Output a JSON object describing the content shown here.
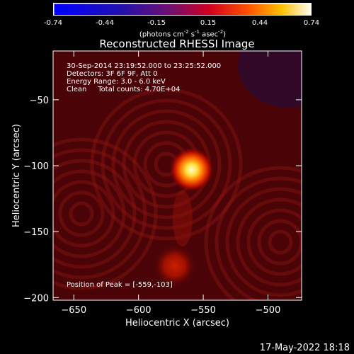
{
  "colorbar": {
    "ticks": [
      "-0.74",
      "-0.44",
      "-0.15",
      "0.15",
      "0.44",
      "0.74"
    ],
    "units_base": "(photons cm",
    "units_exp1": "-2",
    "units_mid": " s",
    "units_exp2": "-1",
    "units_mid2": " asec",
    "units_exp3": "-2",
    "units_end": ")",
    "colors": [
      "#0000ff",
      "#5a1080",
      "#c01040",
      "#ff3000",
      "#ffb000",
      "#ffffe0"
    ]
  },
  "chart_data": {
    "type": "heatmap",
    "title": "Reconstructed RHESSI Image",
    "xlabel": "Heliocentric X (arcsec)",
    "ylabel": "Heliocentric Y (arcsec)",
    "xlim": [
      -666,
      -474
    ],
    "ylim": [
      -202,
      -13
    ],
    "xticks": [
      -650,
      -600,
      -550,
      -500
    ],
    "yticks": [
      -50,
      -100,
      -150,
      -200
    ],
    "xtick_labels": [
      "−650",
      "−600",
      "−550",
      "−500"
    ],
    "ytick_labels": [
      "−50",
      "−100",
      "−150",
      "−200"
    ],
    "sources": [
      {
        "x": -559,
        "y": -103,
        "peak": 0.74
      },
      {
        "x": -572,
        "y": -176,
        "peak": 0.34
      }
    ],
    "colorscale_range": [
      -0.74,
      0.74
    ]
  },
  "annotations": {
    "time_range": "30-Sep-2014 23:19:52.000 to 23:25:52.000",
    "detectors": "Detectors: 3F 6F 9F, Att 0",
    "energy": "Energy Range: 3.0 - 6.0 keV",
    "method": "Clean     Total counts: 4.70E+04",
    "peak": "Position of Peak = [-559,-103]"
  },
  "timestamp": "17-May-2022 18:18"
}
